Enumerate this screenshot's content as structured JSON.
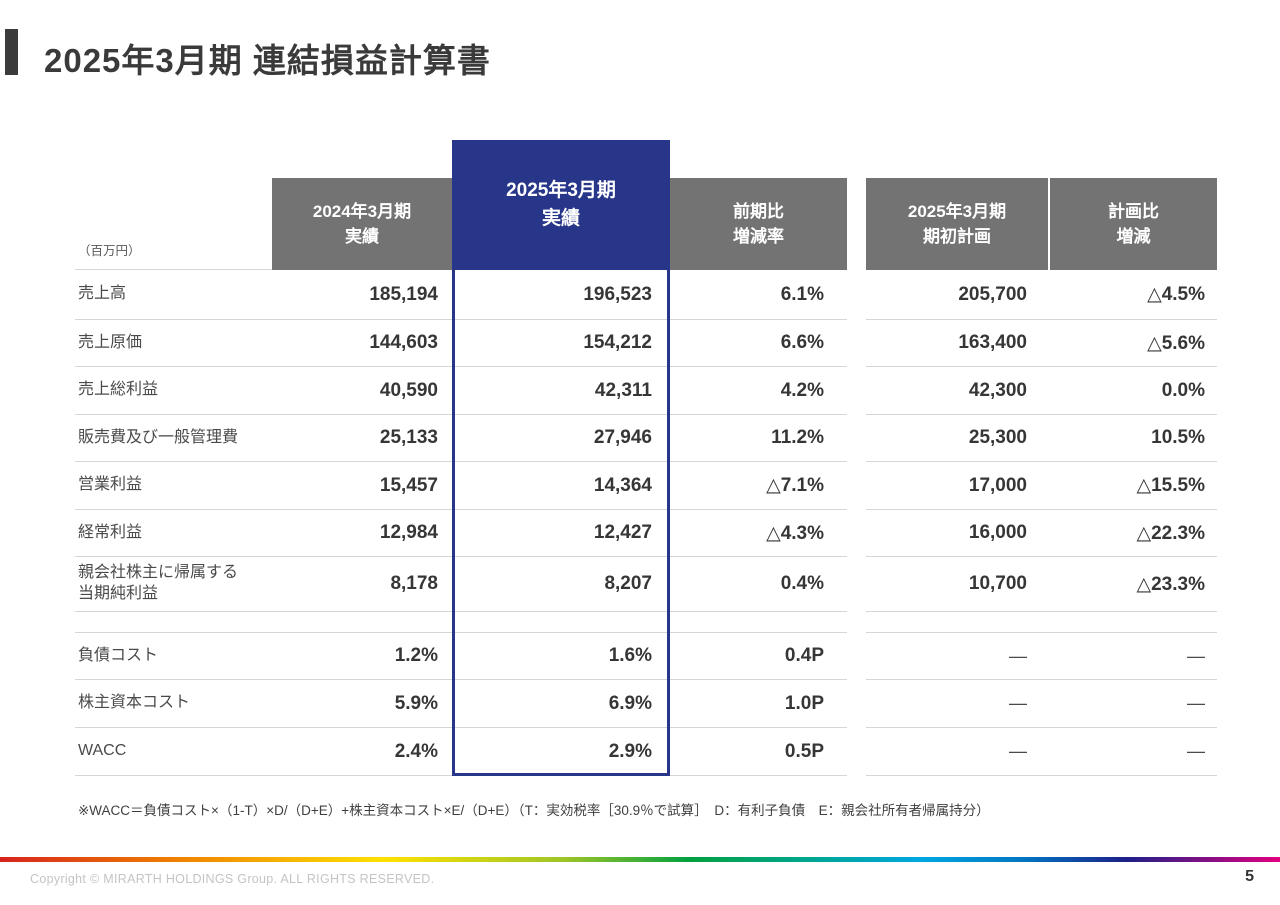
{
  "title": "2025年3月期 連結損益計算書",
  "unit_label": "（百万円）",
  "colors": {
    "accent_blue": "#28368a",
    "header_gray": "#737373"
  },
  "table": {
    "headers": {
      "fy2024": "2024年3月期\n実績",
      "fy2025": "2025年3月期\n実績",
      "yoy": "前期比\n増減率",
      "plan": "2025年3月期\n期初計画",
      "plan_diff": "計画比\n増減"
    },
    "rows": [
      {
        "label": "売上高",
        "fy2024": "185,194",
        "fy2025": "196,523",
        "yoy": "6.1%",
        "plan": "205,700",
        "plan_diff": "△4.5%"
      },
      {
        "label": "売上原価",
        "fy2024": "144,603",
        "fy2025": "154,212",
        "yoy": "6.6%",
        "plan": "163,400",
        "plan_diff": "△5.6%"
      },
      {
        "label": "売上総利益",
        "fy2024": "40,590",
        "fy2025": "42,311",
        "yoy": "4.2%",
        "plan": "42,300",
        "plan_diff": "0.0%"
      },
      {
        "label": "販売費及び一般管理費",
        "fy2024": "25,133",
        "fy2025": "27,946",
        "yoy": "11.2%",
        "plan": "25,300",
        "plan_diff": "10.5%"
      },
      {
        "label": "営業利益",
        "fy2024": "15,457",
        "fy2025": "14,364",
        "yoy": "△7.1%",
        "plan": "17,000",
        "plan_diff": "△15.5%"
      },
      {
        "label": "経常利益",
        "fy2024": "12,984",
        "fy2025": "12,427",
        "yoy": "△4.3%",
        "plan": "16,000",
        "plan_diff": "△22.3%"
      },
      {
        "label": "親会社株主に帰属する\n当期純利益",
        "fy2024": "8,178",
        "fy2025": "8,207",
        "yoy": "0.4%",
        "plan": "10,700",
        "plan_diff": "△23.3%"
      },
      {
        "spacer": true
      },
      {
        "label": "負債コスト",
        "fy2024": "1.2%",
        "fy2025": "1.6%",
        "yoy": "0.4P",
        "plan": "—",
        "plan_diff": "—"
      },
      {
        "label": "株主資本コスト",
        "fy2024": "5.9%",
        "fy2025": "6.9%",
        "yoy": "1.0P",
        "plan": "—",
        "plan_diff": "—"
      },
      {
        "label": "WACC",
        "fy2024": "2.4%",
        "fy2025": "2.9%",
        "yoy": "0.5P",
        "plan": "—",
        "plan_diff": "—"
      }
    ]
  },
  "footnote": "※WACC＝負債コスト×（1-T）×D/（D+E）+株主資本コスト×E/（D+E）（T：実効税率［30.9％で試算］　D：有利子負債　E：親会社所有者帰属持分）",
  "footer": {
    "copyright": "Copyright © MIRARTH HOLDINGS Group. ALL RIGHTS RESERVED.",
    "page": "5"
  }
}
